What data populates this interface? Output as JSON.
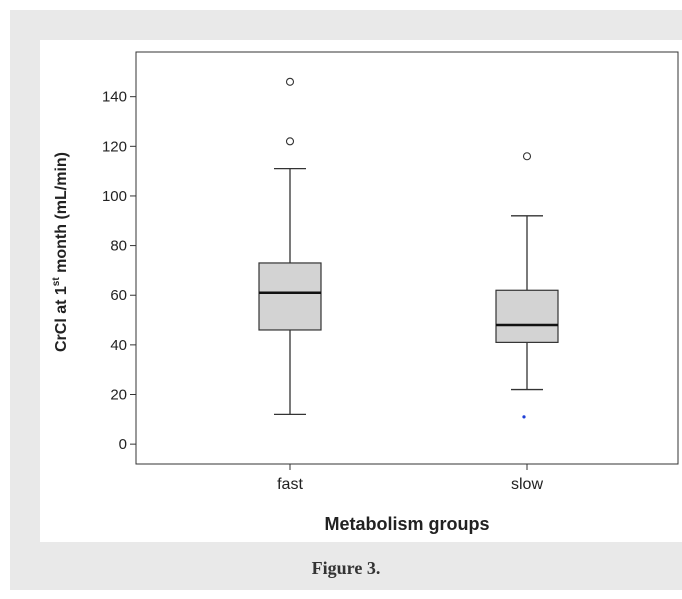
{
  "chart_data": {
    "type": "box",
    "ylabel_prefix": "CrCl  at 1",
    "ylabel_sup": "st",
    "ylabel_suffix": " month (mL/min)",
    "xlabel": "Metabolism groups",
    "ylim": [
      -8,
      158
    ],
    "yticks": [
      0,
      20,
      40,
      60,
      80,
      100,
      120,
      140
    ],
    "categories": [
      "fast",
      "slow"
    ],
    "boxes": [
      {
        "name": "fast",
        "whisker_low": 12,
        "q1": 46,
        "median": 61,
        "q3": 73,
        "whisker_high": 111,
        "outliers": [
          122,
          146
        ],
        "extremes": []
      },
      {
        "name": "slow",
        "whisker_low": 22,
        "q1": 41,
        "median": 48,
        "q3": 62,
        "whisker_high": 92,
        "outliers": [
          116
        ],
        "extremes": [
          11
        ]
      }
    ],
    "colors": {
      "box_fill": "#d3d3d3",
      "stroke": "#333333",
      "extreme": "#1f3fd6"
    }
  },
  "caption": "Figure 3."
}
